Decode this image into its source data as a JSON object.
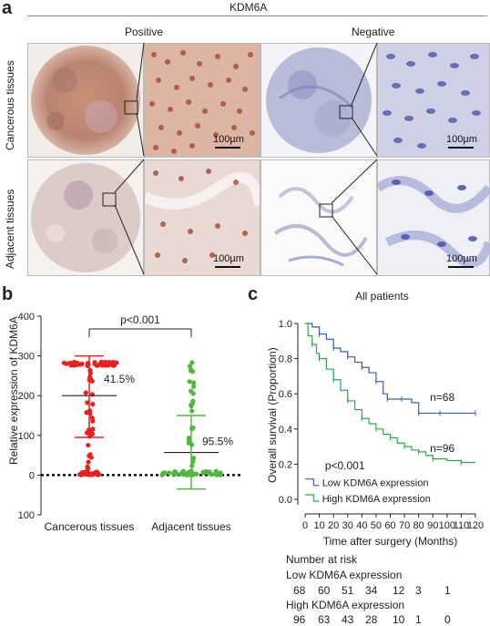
{
  "panel_a": {
    "letter": "a",
    "gene": "KDM6A",
    "col_positive": "Positive",
    "col_negative": "Negative",
    "row_cancerous": "Cancerous tissues",
    "row_adjacent": "Adjacent tissues",
    "scale_label": "100µm"
  },
  "panel_b": {
    "letter": "b",
    "pvalue": "p<0.001",
    "pct_cancer": "41.5%",
    "pct_adjacent": "95.5%"
  },
  "panel_c": {
    "letter": "c",
    "title": "All patients",
    "pvalue": "p<0.001",
    "n_low": "n=68",
    "n_high": "n=96",
    "risk_title": "Number at risk",
    "risk_low_label": "Low KDM6A expression",
    "risk_low_values": [
      "68",
      "60",
      "51",
      "34",
      "12",
      "3",
      "1"
    ],
    "risk_high_label": "High KDM6A expression",
    "risk_high_values": [
      "96",
      "63",
      "43",
      "28",
      "10",
      "1",
      "0"
    ]
  },
  "colors": {
    "red": "#e8211f",
    "green": "#52b83a",
    "blue": "#3b5bb5",
    "kmgreen": "#2aa84a"
  },
  "chart_data": [
    {
      "type": "scatter",
      "panel": "b",
      "ylabel": "Relative expression of  KDM6A",
      "categories": [
        "Cancerous tissues",
        "Adjacent tissues"
      ],
      "ylim": [
        -100,
        400
      ],
      "yticks": [
        "-100",
        "0",
        "100",
        "200",
        "300",
        "400"
      ],
      "series": [
        {
          "category": "Cancerous tissues",
          "mean": 200,
          "sd_upper": 300,
          "sd_lower": 95,
          "max": 300,
          "cluster_high": 280
        },
        {
          "category": "Adjacent tissues",
          "mean": 57,
          "sd_upper": 150,
          "sd_lower": -35,
          "max": 285,
          "cluster_low": 5
        }
      ]
    },
    {
      "type": "line",
      "panel": "c",
      "ylabel": "Overall survival (Proportion)",
      "xlabel": "Time after surgery (Months)",
      "xlim": [
        0,
        120
      ],
      "ylim": [
        0,
        1.0
      ],
      "xticks": [
        "0",
        "10",
        "20",
        "30",
        "40",
        "50",
        "60",
        "70",
        "80",
        "90",
        "100",
        "110",
        "120"
      ],
      "yticks": [
        "0.0",
        "0.2",
        "0.4",
        "0.6",
        "0.8",
        "1.0"
      ],
      "series": [
        {
          "name": "Low KDM6A expression",
          "x": [
            0,
            5,
            10,
            15,
            20,
            25,
            30,
            35,
            40,
            45,
            50,
            55,
            58,
            62,
            68,
            75,
            80,
            85,
            95,
            110,
            120
          ],
          "y": [
            1.0,
            0.98,
            0.94,
            0.91,
            0.86,
            0.84,
            0.81,
            0.78,
            0.75,
            0.72,
            0.67,
            0.6,
            0.57,
            0.57,
            0.57,
            0.55,
            0.49,
            0.49,
            0.49,
            0.49,
            0.49
          ]
        },
        {
          "name": "High KDM6A expression",
          "x": [
            0,
            2,
            5,
            8,
            10,
            15,
            20,
            25,
            30,
            35,
            40,
            45,
            50,
            55,
            60,
            65,
            70,
            75,
            80,
            85,
            90,
            100,
            110,
            120
          ],
          "y": [
            1.0,
            0.93,
            0.88,
            0.83,
            0.8,
            0.74,
            0.68,
            0.62,
            0.56,
            0.51,
            0.46,
            0.43,
            0.4,
            0.37,
            0.35,
            0.32,
            0.3,
            0.28,
            0.27,
            0.25,
            0.23,
            0.22,
            0.21,
            0.21
          ]
        }
      ]
    }
  ]
}
